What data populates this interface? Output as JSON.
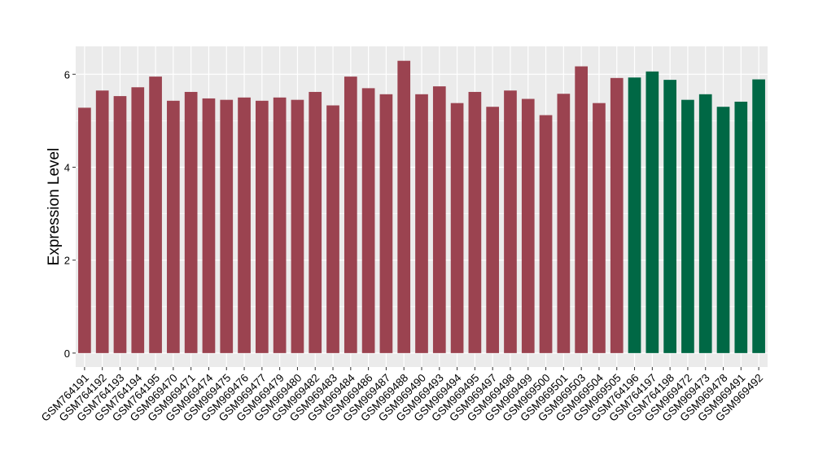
{
  "chart_data": {
    "type": "bar",
    "title": "",
    "xlabel": "",
    "ylabel": "Expression Level",
    "ylim": [
      -0.3,
      6.6
    ],
    "yticks": [
      0,
      2,
      4,
      6
    ],
    "grid": true,
    "legend": "none",
    "colors": {
      "group_a": "#9b4350",
      "group_b": "#006845",
      "panel_bg": "#ebebeb",
      "grid": "#ffffff",
      "axis_text": "#000000"
    },
    "categories": [
      "GSM764191",
      "GSM764192",
      "GSM764193",
      "GSM764194",
      "GSM764195",
      "GSM969470",
      "GSM969471",
      "GSM969474",
      "GSM969475",
      "GSM969476",
      "GSM969477",
      "GSM969479",
      "GSM969480",
      "GSM969482",
      "GSM969483",
      "GSM969484",
      "GSM969486",
      "GSM969487",
      "GSM969488",
      "GSM969490",
      "GSM969493",
      "GSM969494",
      "GSM969495",
      "GSM969497",
      "GSM969498",
      "GSM969499",
      "GSM969500",
      "GSM969501",
      "GSM969503",
      "GSM969504",
      "GSM969505",
      "GSM764196",
      "GSM764197",
      "GSM764198",
      "GSM969472",
      "GSM969473",
      "GSM969478",
      "GSM969491",
      "GSM969492"
    ],
    "values": [
      5.28,
      5.65,
      5.53,
      5.72,
      5.95,
      5.43,
      5.62,
      5.48,
      5.45,
      5.5,
      5.43,
      5.5,
      5.45,
      5.62,
      5.33,
      5.95,
      5.7,
      5.57,
      6.29,
      5.57,
      5.74,
      5.38,
      5.62,
      5.3,
      5.65,
      5.47,
      5.12,
      5.58,
      6.17,
      5.38,
      5.92,
      5.93,
      6.06,
      5.88,
      5.45,
      5.57,
      5.3,
      5.41,
      5.89
    ],
    "groups": [
      "a",
      "a",
      "a",
      "a",
      "a",
      "a",
      "a",
      "a",
      "a",
      "a",
      "a",
      "a",
      "a",
      "a",
      "a",
      "a",
      "a",
      "a",
      "a",
      "a",
      "a",
      "a",
      "a",
      "a",
      "a",
      "a",
      "a",
      "a",
      "a",
      "a",
      "a",
      "b",
      "b",
      "b",
      "b",
      "b",
      "b",
      "b",
      "b"
    ]
  }
}
